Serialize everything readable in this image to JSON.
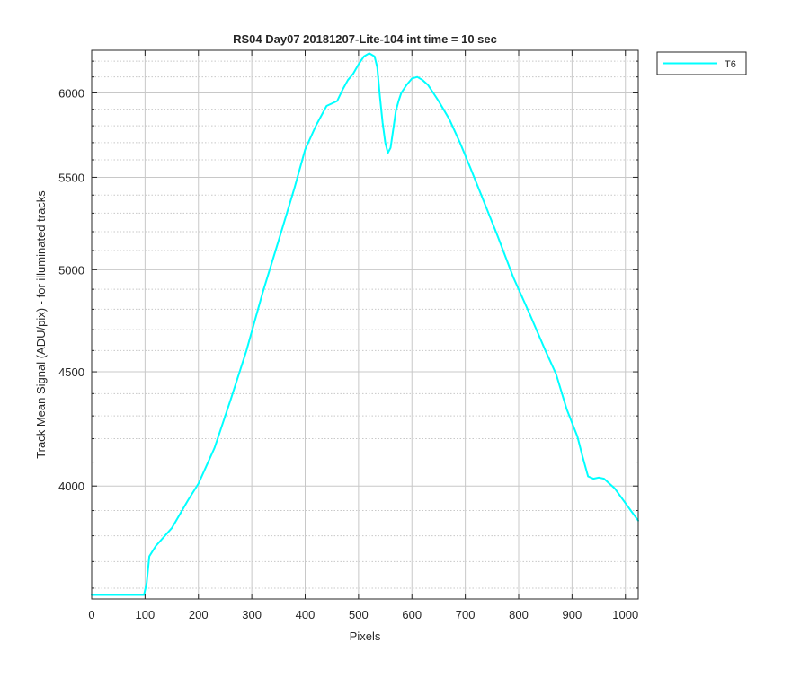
{
  "figure": {
    "background": "#ffffff",
    "axes_color": "#262626",
    "grid_color": "#c8c8c8"
  },
  "chart_data": {
    "type": "line",
    "title": "RS04 Day07 20181207-Lite-104 int time = 10 sec",
    "xlabel": "Pixels",
    "ylabel": "Track Mean Signal (ADU/pix) - for illuminated tracks",
    "xlim": [
      0,
      1024
    ],
    "ylim": [
      3560,
      6270
    ],
    "yscale": "log",
    "grid": true,
    "minor_grid": true,
    "legend_position": "outside-top-right",
    "x_ticks": [
      0,
      100,
      200,
      300,
      400,
      500,
      600,
      700,
      800,
      900,
      1000
    ],
    "y_ticks": [
      4000,
      4500,
      5000,
      5500,
      6000
    ],
    "y_minor_ticks": [
      3600,
      3700,
      3800,
      3900,
      4100,
      4200,
      4300,
      4400,
      4600,
      4700,
      4800,
      4900,
      5100,
      5200,
      5300,
      5400,
      5600,
      5700,
      5800,
      5900,
      6100,
      6200
    ],
    "series": [
      {
        "name": "T6",
        "color": "#00ffff",
        "x": [
          0,
          50,
          98,
          103,
          108,
          120,
          150,
          180,
          200,
          230,
          260,
          290,
          320,
          350,
          380,
          400,
          420,
          440,
          460,
          470,
          480,
          490,
          500,
          510,
          520,
          530,
          535,
          540,
          545,
          550,
          555,
          560,
          565,
          570,
          575,
          580,
          590,
          600,
          610,
          620,
          630,
          640,
          650,
          670,
          690,
          710,
          730,
          760,
          790,
          820,
          850,
          870,
          890,
          910,
          920,
          930,
          940,
          950,
          960,
          970,
          980,
          990,
          1000,
          1010,
          1024
        ],
        "values": [
          3575,
          3575,
          3575,
          3620,
          3720,
          3760,
          3830,
          3940,
          4010,
          4160,
          4370,
          4600,
          4880,
          5150,
          5440,
          5660,
          5800,
          5920,
          5950,
          6020,
          6080,
          6120,
          6180,
          6230,
          6250,
          6230,
          6160,
          5980,
          5820,
          5700,
          5640,
          5670,
          5780,
          5890,
          5950,
          6000,
          6050,
          6090,
          6100,
          6080,
          6050,
          6000,
          5950,
          5840,
          5700,
          5550,
          5400,
          5180,
          4960,
          4780,
          4600,
          4490,
          4330,
          4210,
          4120,
          4040,
          4030,
          4035,
          4030,
          4010,
          3990,
          3960,
          3930,
          3900,
          3860
        ]
      }
    ]
  }
}
